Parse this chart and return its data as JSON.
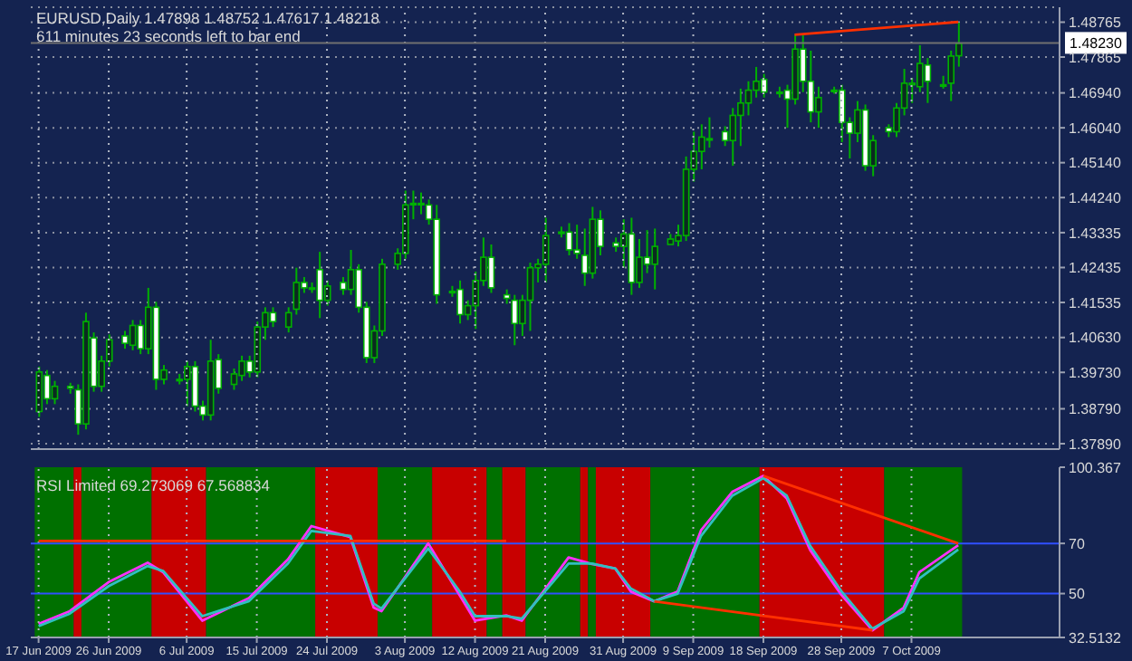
{
  "chart_data": [
    {
      "type": "candlestick",
      "title": "EURUSD,Daily  1.47898 1.48752 1.47617 1.48218",
      "subtitle": "611 minutes 23 seconds left to bar end",
      "x": [
        "2009-06-17",
        "2009-06-18",
        "2009-06-19",
        "2009-06-21",
        "2009-06-22",
        "2009-06-23",
        "2009-06-24",
        "2009-06-25",
        "2009-06-26",
        "2009-06-28",
        "2009-06-29",
        "2009-06-30",
        "2009-07-01",
        "2009-07-02",
        "2009-07-03",
        "2009-07-05",
        "2009-07-06",
        "2009-07-07",
        "2009-07-08",
        "2009-07-09",
        "2009-07-10",
        "2009-07-12",
        "2009-07-13",
        "2009-07-14",
        "2009-07-15",
        "2009-07-16",
        "2009-07-17",
        "2009-07-19",
        "2009-07-20",
        "2009-07-21",
        "2009-07-22",
        "2009-07-23",
        "2009-07-24",
        "2009-07-26",
        "2009-07-27",
        "2009-07-28",
        "2009-07-29",
        "2009-07-30",
        "2009-07-31",
        "2009-08-02",
        "2009-08-03",
        "2009-08-04",
        "2009-08-05",
        "2009-08-06",
        "2009-08-07",
        "2009-08-09",
        "2009-08-10",
        "2009-08-11",
        "2009-08-12",
        "2009-08-13",
        "2009-08-14",
        "2009-08-16",
        "2009-08-17",
        "2009-08-18",
        "2009-08-19",
        "2009-08-20",
        "2009-08-21",
        "2009-08-23",
        "2009-08-24",
        "2009-08-25",
        "2009-08-26",
        "2009-08-27",
        "2009-08-28",
        "2009-08-30",
        "2009-08-31",
        "2009-09-01",
        "2009-09-02",
        "2009-09-03",
        "2009-09-04",
        "2009-09-06",
        "2009-09-07",
        "2009-09-08",
        "2009-09-09",
        "2009-09-10",
        "2009-09-11",
        "2009-09-13",
        "2009-09-14",
        "2009-09-15",
        "2009-09-16",
        "2009-09-17",
        "2009-09-18",
        "2009-09-20",
        "2009-09-21",
        "2009-09-22",
        "2009-09-23",
        "2009-09-24",
        "2009-09-25",
        "2009-09-27",
        "2009-09-28",
        "2009-09-29",
        "2009-09-30",
        "2009-10-01",
        "2009-10-02",
        "2009-10-04",
        "2009-10-05",
        "2009-10-06",
        "2009-10-07",
        "2009-10-08",
        "2009-10-09",
        "2009-10-11",
        "2009-10-12",
        "2009-10-13"
      ],
      "ohlc": [
        [
          1.3872,
          1.3988,
          1.3858,
          1.3974
        ],
        [
          1.3965,
          1.3979,
          1.3891,
          1.3905
        ],
        [
          1.3905,
          1.3951,
          1.3891,
          1.3937
        ],
        [
          1.3937,
          1.3946,
          1.3918,
          1.3932
        ],
        [
          1.3928,
          1.3942,
          1.3812,
          1.384
        ],
        [
          1.384,
          1.4127,
          1.3826,
          1.4104
        ],
        [
          1.4062,
          1.4076,
          1.3923,
          1.3937
        ],
        [
          1.3937,
          1.4016,
          1.3923,
          1.4002
        ],
        [
          1.4002,
          1.4071,
          1.3988,
          1.4057
        ],
        [
          1.4067,
          1.408,
          1.4034,
          1.4048
        ],
        [
          1.4043,
          1.4108,
          1.403,
          1.4094
        ],
        [
          1.4094,
          1.4108,
          1.402,
          1.4034
        ],
        [
          1.4034,
          1.4191,
          1.402,
          1.4141
        ],
        [
          1.4141,
          1.4155,
          1.3928,
          1.3955
        ],
        [
          1.3955,
          1.3992,
          1.3942,
          1.3979
        ],
        [
          1.3955,
          1.3969,
          1.3942,
          1.3955
        ],
        [
          1.3955,
          1.4002,
          1.3886,
          1.3988
        ],
        [
          1.3988,
          1.4002,
          1.3872,
          1.3886
        ],
        [
          1.3886,
          1.39,
          1.3849,
          1.3863
        ],
        [
          1.3863,
          1.4057,
          1.3849,
          1.4002
        ],
        [
          1.4006,
          1.402,
          1.3918,
          1.3932
        ],
        [
          1.3942,
          1.3983,
          1.3928,
          1.3969
        ],
        [
          1.3965,
          1.4016,
          1.3951,
          1.4002
        ],
        [
          1.4002,
          1.4016,
          1.396,
          1.3974
        ],
        [
          1.3974,
          1.4104,
          1.396,
          1.409
        ],
        [
          1.409,
          1.4141,
          1.4057,
          1.4127
        ],
        [
          1.4127,
          1.4141,
          1.409,
          1.4104
        ],
        [
          1.409,
          1.4141,
          1.4076,
          1.4127
        ],
        [
          1.4136,
          1.4243,
          1.4122,
          1.4205
        ],
        [
          1.4205,
          1.4219,
          1.4178,
          1.4191
        ],
        [
          1.4191,
          1.4205,
          1.4178,
          1.4191
        ],
        [
          1.4238,
          1.4284,
          1.4113,
          1.4159
        ],
        [
          1.4159,
          1.421,
          1.4145,
          1.4196
        ],
        [
          1.4205,
          1.4219,
          1.4173,
          1.4187
        ],
        [
          1.4187,
          1.4289,
          1.4173,
          1.4238
        ],
        [
          1.4238,
          1.4252,
          1.4127,
          1.4141
        ],
        [
          1.4141,
          1.4155,
          1.3997,
          1.4011
        ],
        [
          1.4011,
          1.4094,
          1.3997,
          1.408
        ],
        [
          1.408,
          1.4266,
          1.4067,
          1.4252
        ],
        [
          1.4252,
          1.4293,
          1.4238,
          1.428
        ],
        [
          1.428,
          1.4442,
          1.4266,
          1.4405
        ],
        [
          1.4409,
          1.4442,
          1.4368,
          1.4409
        ],
        [
          1.4409,
          1.4437,
          1.4381,
          1.4409
        ],
        [
          1.4405,
          1.4419,
          1.4354,
          1.4368
        ],
        [
          1.4368,
          1.4405,
          1.415,
          1.4173
        ],
        [
          1.4182,
          1.4196,
          1.4168,
          1.4182
        ],
        [
          1.4187,
          1.421,
          1.4099,
          1.4122
        ],
        [
          1.4122,
          1.4159,
          1.4108,
          1.4145
        ],
        [
          1.4145,
          1.4233,
          1.4085,
          1.421
        ],
        [
          1.421,
          1.4321,
          1.4196,
          1.427
        ],
        [
          1.427,
          1.4303,
          1.4178,
          1.4191
        ],
        [
          1.4173,
          1.4187,
          1.415,
          1.4164
        ],
        [
          1.4159,
          1.4173,
          1.4043,
          1.4099
        ],
        [
          1.4099,
          1.4173,
          1.4067,
          1.4159
        ],
        [
          1.4159,
          1.4256,
          1.408,
          1.4243
        ],
        [
          1.4243,
          1.4266,
          1.4205,
          1.4252
        ],
        [
          1.4252,
          1.4372,
          1.4205,
          1.4326
        ],
        [
          1.4335,
          1.4349,
          1.4321,
          1.4335
        ],
        [
          1.4335,
          1.4358,
          1.4275,
          1.4289
        ],
        [
          1.4289,
          1.4354,
          1.4266,
          1.428
        ],
        [
          1.4275,
          1.4344,
          1.4196,
          1.4229
        ],
        [
          1.4229,
          1.44,
          1.4215,
          1.4368
        ],
        [
          1.4368,
          1.4391,
          1.4275,
          1.4298
        ],
        [
          1.4307,
          1.4321,
          1.4284,
          1.4298
        ],
        [
          1.4298,
          1.4368,
          1.4243,
          1.433
        ],
        [
          1.433,
          1.4372,
          1.4173,
          1.4205
        ],
        [
          1.4205,
          1.4317,
          1.4191,
          1.427
        ],
        [
          1.427,
          1.434,
          1.4229,
          1.4252
        ],
        [
          1.4252,
          1.4344,
          1.4187,
          1.4298
        ],
        [
          1.4303,
          1.433,
          1.4303,
          1.4317
        ],
        [
          1.4312,
          1.4354,
          1.4298,
          1.4326
        ],
        [
          1.4326,
          1.453,
          1.4312,
          1.4497
        ],
        [
          1.4497,
          1.4594,
          1.4465,
          1.4543
        ],
        [
          1.4543,
          1.4613,
          1.4497,
          1.458
        ],
        [
          1.4576,
          1.4631,
          1.4553,
          1.4576
        ],
        [
          1.4594,
          1.4608,
          1.4557,
          1.4571
        ],
        [
          1.4571,
          1.4655,
          1.4506,
          1.4636
        ],
        [
          1.4636,
          1.4705,
          1.4557,
          1.4668
        ],
        [
          1.4668,
          1.4724,
          1.4636,
          1.4701
        ],
        [
          1.4701,
          1.4761,
          1.4682,
          1.4724
        ],
        [
          1.4729,
          1.4743,
          1.4682,
          1.4696
        ],
        [
          1.4696,
          1.471,
          1.4682,
          1.4696
        ],
        [
          1.4701,
          1.4715,
          1.4604,
          1.4678
        ],
        [
          1.4678,
          1.4844,
          1.4664,
          1.4807
        ],
        [
          1.4807,
          1.4844,
          1.4696,
          1.4724
        ],
        [
          1.4724,
          1.4803,
          1.4618,
          1.4645
        ],
        [
          1.4645,
          1.471,
          1.4604,
          1.4682
        ],
        [
          1.4701,
          1.471,
          1.4692,
          1.4701
        ],
        [
          1.4701,
          1.4715,
          1.4567,
          1.4618
        ],
        [
          1.4618,
          1.4631,
          1.4525,
          1.459
        ],
        [
          1.459,
          1.4673,
          1.4567,
          1.465
        ],
        [
          1.465,
          1.4664,
          1.4493,
          1.4506
        ],
        [
          1.4506,
          1.4585,
          1.4479,
          1.4571
        ],
        [
          1.4604,
          1.4613,
          1.458,
          1.4594
        ],
        [
          1.4594,
          1.4668,
          1.458,
          1.4655
        ],
        [
          1.4655,
          1.4756,
          1.4636,
          1.4719
        ],
        [
          1.4715,
          1.4733,
          1.4668,
          1.4719
        ],
        [
          1.471,
          1.4817,
          1.4696,
          1.477
        ],
        [
          1.4766,
          1.4784,
          1.4668,
          1.4724
        ],
        [
          1.4715,
          1.4738,
          1.4705,
          1.4715
        ],
        [
          1.4719,
          1.4803,
          1.4673,
          1.4789
        ],
        [
          1.47898,
          1.48752,
          1.47617,
          1.48218
        ]
      ],
      "series": [
        {
          "type": "line",
          "color": "#ff3000",
          "x": [
            "2009-09-22",
            "2009-10-13"
          ],
          "values": [
            1.4844,
            1.4877
          ]
        }
      ],
      "xlim": [
        "2009-06-16",
        "2009-10-26"
      ],
      "xticks": [
        {
          "value": "2009-06-17",
          "label": null
        },
        {
          "value": "2009-06-26",
          "label": null
        },
        {
          "value": "2009-07-06",
          "label": null
        },
        {
          "value": "2009-07-15",
          "label": null
        },
        {
          "value": "2009-07-24",
          "label": null
        },
        {
          "value": "2009-08-03",
          "label": null
        },
        {
          "value": "2009-08-12",
          "label": null
        },
        {
          "value": "2009-08-21",
          "label": null
        },
        {
          "value": "2009-08-31",
          "label": null
        },
        {
          "value": "2009-09-09",
          "label": null
        },
        {
          "value": "2009-09-18",
          "label": null
        },
        {
          "value": "2009-09-28",
          "label": null
        },
        {
          "value": "2009-10-07",
          "label": null
        }
      ],
      "ylim": [
        1.3775,
        1.4915
      ],
      "yticks": [
        1.48765,
        1.47865,
        {
          "value": 1.4694,
          "label": "1.46940"
        },
        {
          "value": 1.4604,
          "label": "1.46040"
        },
        {
          "value": 1.4514,
          "label": "1.45140"
        },
        {
          "value": 1.4424,
          "label": "1.44240"
        },
        1.43335,
        1.42435,
        1.41535,
        {
          "value": 1.4063,
          "label": "1.40630"
        },
        {
          "value": 1.3973,
          "label": "1.39730"
        },
        {
          "value": 1.3879,
          "label": "1.38790"
        },
        {
          "value": 1.3789,
          "label": "1.37890"
        }
      ],
      "ref_lines": [
        {
          "axis": "y",
          "value": 1.4823,
          "label": "1.48230",
          "color": "#707070"
        }
      ],
      "grid": true,
      "tick_labels": "y"
    },
    {
      "type": "line",
      "title": "RSI Limited 69.273069 67.568834",
      "series": [
        {
          "color": "#ff30ff",
          "x": [
            "2009-06-17",
            "2009-06-21",
            "2009-06-26",
            "2009-07-01",
            "2009-07-03",
            "2009-07-08",
            "2009-07-14",
            "2009-07-19",
            "2009-07-22",
            "2009-07-27",
            "2009-07-30",
            "2009-07-31",
            "2009-08-06",
            "2009-08-10",
            "2009-08-12",
            "2009-08-16",
            "2009-08-18",
            "2009-08-24",
            "2009-08-27",
            "2009-08-30",
            "2009-09-01",
            "2009-09-04",
            "2009-09-07",
            "2009-09-10",
            "2009-09-14",
            "2009-09-18",
            "2009-09-21",
            "2009-09-24",
            "2009-09-28",
            "2009-10-02",
            "2009-10-06",
            "2009-10-08",
            "2009-10-13"
          ],
          "values": [
            37.9,
            43,
            54.6,
            62.3,
            58.5,
            39.2,
            48.2,
            63.6,
            76.9,
            72.5,
            44.4,
            43,
            70,
            49.5,
            39.2,
            41.3,
            39.2,
            64.4,
            61.8,
            60,
            50.8,
            46.9,
            50.8,
            75.2,
            90.5,
            96.9,
            87.9,
            67.4,
            49.5,
            35.4,
            44.4,
            58.5,
            69.27
          ]
        },
        {
          "color": "#30c0c0",
          "x": [
            "2009-06-17",
            "2009-06-21",
            "2009-06-26",
            "2009-07-01",
            "2009-07-03",
            "2009-07-08",
            "2009-07-14",
            "2009-07-19",
            "2009-07-22",
            "2009-07-27",
            "2009-07-30",
            "2009-07-31",
            "2009-08-06",
            "2009-08-10",
            "2009-08-12",
            "2009-08-16",
            "2009-08-18",
            "2009-08-24",
            "2009-08-27",
            "2009-08-30",
            "2009-09-01",
            "2009-09-04",
            "2009-09-07",
            "2009-09-10",
            "2009-09-14",
            "2009-09-18",
            "2009-09-21",
            "2009-09-24",
            "2009-09-28",
            "2009-10-02",
            "2009-10-06",
            "2009-10-08",
            "2009-10-13"
          ],
          "values": [
            37,
            42,
            53,
            61,
            59,
            41,
            47,
            62,
            75,
            73,
            46,
            44,
            68,
            51,
            41,
            41,
            40,
            62,
            62,
            60,
            52,
            47,
            50,
            73,
            89,
            96,
            89,
            69,
            51,
            36,
            43,
            56,
            67.57
          ]
        },
        {
          "color": "#ff3000",
          "x": [
            "2009-09-18",
            "2009-10-13"
          ],
          "values": [
            96.9,
            70
          ]
        },
        {
          "color": "#ff3000",
          "x": [
            "2009-09-04",
            "2009-10-02"
          ],
          "values": [
            46.9,
            35.4
          ]
        },
        {
          "color": "#ff3000",
          "x": [
            "2009-06-17",
            "2009-08-16"
          ],
          "values": [
            71,
            71
          ]
        }
      ],
      "bands": [
        {
          "axis": "x",
          "from": "2009-06-17",
          "to": "2009-06-21",
          "color": "#007000"
        },
        {
          "axis": "x",
          "from": "2009-06-22",
          "to": "2009-06-22",
          "color": "#c80000"
        },
        {
          "axis": "x",
          "from": "2009-06-23",
          "to": "2009-07-01",
          "color": "#007000"
        },
        {
          "axis": "x",
          "from": "2009-07-02",
          "to": "2009-07-08",
          "color": "#c80000"
        },
        {
          "axis": "x",
          "from": "2009-07-09",
          "to": "2009-07-22",
          "color": "#007000"
        },
        {
          "axis": "x",
          "from": "2009-07-23",
          "to": "2009-07-30",
          "color": "#c80000"
        },
        {
          "axis": "x",
          "from": "2009-07-31",
          "to": "2009-08-06",
          "color": "#007000"
        },
        {
          "axis": "x",
          "from": "2009-08-07",
          "to": "2009-08-13",
          "color": "#c80000"
        },
        {
          "axis": "x",
          "from": "2009-08-14",
          "to": "2009-08-15",
          "color": "#007000"
        },
        {
          "axis": "x",
          "from": "2009-08-16",
          "to": "2009-08-18",
          "color": "#c80000"
        },
        {
          "axis": "x",
          "from": "2009-08-19",
          "to": "2009-08-25",
          "color": "#007000"
        },
        {
          "axis": "x",
          "from": "2009-08-26",
          "to": "2009-08-26",
          "color": "#c80000"
        },
        {
          "axis": "x",
          "from": "2009-08-27",
          "to": "2009-08-27",
          "color": "#007000"
        },
        {
          "axis": "x",
          "from": "2009-08-28",
          "to": "2009-09-03",
          "color": "#c80000"
        },
        {
          "axis": "x",
          "from": "2009-09-04",
          "to": "2009-09-17",
          "color": "#007000"
        },
        {
          "axis": "x",
          "from": "2009-09-18",
          "to": "2009-10-03",
          "color": "#c80000"
        },
        {
          "axis": "x",
          "from": "2009-10-04",
          "to": "2009-10-13",
          "color": "#007000"
        }
      ],
      "xlim": [
        "2009-06-16",
        "2009-10-26"
      ],
      "xticks": [
        {
          "value": "2009-06-17",
          "label": "17 Jun 2009"
        },
        {
          "value": "2009-06-26",
          "label": "26 Jun 2009"
        },
        {
          "value": "2009-07-06",
          "label": "6 Jul 2009"
        },
        {
          "value": "2009-07-15",
          "label": "15 Jul 2009"
        },
        {
          "value": "2009-07-24",
          "label": "24 Jul 2009"
        },
        {
          "value": "2009-08-03",
          "label": "3 Aug 2009"
        },
        {
          "value": "2009-08-12",
          "label": "12 Aug 2009"
        },
        {
          "value": "2009-08-21",
          "label": "21 Aug 2009"
        },
        {
          "value": "2009-08-31",
          "label": "31 Aug 2009"
        },
        {
          "value": "2009-09-09",
          "label": "9 Sep 2009"
        },
        {
          "value": "2009-09-18",
          "label": "18 Sep 2009"
        },
        {
          "value": "2009-09-28",
          "label": "28 Sep 2009"
        },
        {
          "value": "2009-10-07",
          "label": "7 Oct 2009"
        }
      ],
      "ylim": [
        32.5132,
        100.367
      ],
      "yticks": [
        100.367,
        70,
        50,
        32.5132
      ],
      "ref_lines": [
        {
          "axis": "y",
          "value": 70,
          "color": "#3050ff"
        },
        {
          "axis": "y",
          "value": 50,
          "color": "#3050ff"
        }
      ],
      "grid": "x"
    }
  ]
}
